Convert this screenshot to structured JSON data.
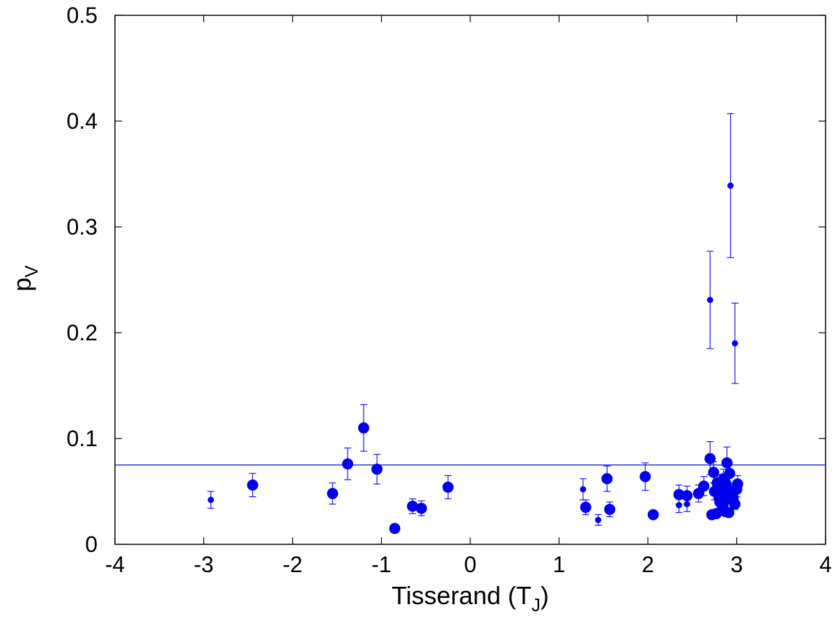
{
  "chart_data": {
    "type": "scatter",
    "title": "",
    "xlabel": "Tisserand (T",
    "xlabel_sub": "J",
    "xlabel_suffix": ")",
    "ylabel": "p",
    "ylabel_sub": "V",
    "xlim": [
      -4,
      4
    ],
    "ylim": [
      0,
      0.5
    ],
    "xticks": [
      -4,
      -3,
      -2,
      -1,
      0,
      1,
      2,
      3,
      4
    ],
    "yticks": [
      0,
      0.1,
      0.2,
      0.3,
      0.4,
      0.5
    ],
    "xtick_labels": [
      "-4",
      "-3",
      "-2",
      "-1",
      "0",
      "1",
      "2",
      "3",
      "4"
    ],
    "ytick_labels": [
      "0",
      "0.1",
      "0.2",
      "0.3",
      "0.4",
      "0.5"
    ],
    "grid": false,
    "color": "#0000ee",
    "reference_line": {
      "y": 0.075
    },
    "points": [
      {
        "x": -2.92,
        "y": 0.042,
        "lo": 0.034,
        "hi": 0.05,
        "size": "small"
      },
      {
        "x": -2.45,
        "y": 0.056,
        "lo": 0.045,
        "hi": 0.067,
        "size": "large"
      },
      {
        "x": -1.55,
        "y": 0.048,
        "lo": 0.038,
        "hi": 0.058,
        "size": "large"
      },
      {
        "x": -1.38,
        "y": 0.076,
        "lo": 0.061,
        "hi": 0.091,
        "size": "large"
      },
      {
        "x": -1.2,
        "y": 0.11,
        "lo": 0.088,
        "hi": 0.132,
        "size": "large"
      },
      {
        "x": -1.05,
        "y": 0.071,
        "lo": 0.057,
        "hi": 0.085,
        "size": "large"
      },
      {
        "x": -0.85,
        "y": 0.015,
        "lo": 0.013,
        "hi": 0.017,
        "size": "large"
      },
      {
        "x": -0.65,
        "y": 0.036,
        "lo": 0.029,
        "hi": 0.043,
        "size": "large"
      },
      {
        "x": -0.55,
        "y": 0.034,
        "lo": 0.027,
        "hi": 0.041,
        "size": "large"
      },
      {
        "x": -0.25,
        "y": 0.054,
        "lo": 0.043,
        "hi": 0.065,
        "size": "large"
      },
      {
        "x": 1.27,
        "y": 0.052,
        "lo": 0.042,
        "hi": 0.062,
        "size": "small"
      },
      {
        "x": 1.3,
        "y": 0.035,
        "lo": 0.028,
        "hi": 0.042,
        "size": "large"
      },
      {
        "x": 1.44,
        "y": 0.023,
        "lo": 0.018,
        "hi": 0.028,
        "size": "small"
      },
      {
        "x": 1.54,
        "y": 0.062,
        "lo": 0.05,
        "hi": 0.074,
        "size": "large"
      },
      {
        "x": 1.57,
        "y": 0.033,
        "lo": 0.026,
        "hi": 0.04,
        "size": "large"
      },
      {
        "x": 1.97,
        "y": 0.064,
        "lo": 0.051,
        "hi": 0.077,
        "size": "large"
      },
      {
        "x": 2.06,
        "y": 0.028,
        "lo": 0.025,
        "hi": 0.031,
        "size": "large"
      },
      {
        "x": 2.35,
        "y": 0.047,
        "lo": 0.038,
        "hi": 0.056,
        "size": "large"
      },
      {
        "x": 2.35,
        "y": 0.037,
        "lo": 0.03,
        "hi": 0.044,
        "size": "small"
      },
      {
        "x": 2.44,
        "y": 0.046,
        "lo": 0.037,
        "hi": 0.055,
        "size": "large"
      },
      {
        "x": 2.44,
        "y": 0.038,
        "lo": 0.031,
        "hi": 0.045,
        "size": "small"
      },
      {
        "x": 2.57,
        "y": 0.048,
        "lo": 0.04,
        "hi": 0.056,
        "size": "large"
      },
      {
        "x": 2.63,
        "y": 0.055,
        "lo": 0.046,
        "hi": 0.064,
        "size": "large"
      },
      {
        "x": 2.7,
        "y": 0.081,
        "lo": 0.066,
        "hi": 0.097,
        "size": "large"
      },
      {
        "x": 2.7,
        "y": 0.231,
        "lo": 0.185,
        "hi": 0.277,
        "size": "small"
      },
      {
        "x": 2.72,
        "y": 0.028,
        "lo": 0.025,
        "hi": 0.031,
        "size": "large"
      },
      {
        "x": 2.74,
        "y": 0.068,
        "lo": 0.058,
        "hi": 0.078,
        "size": "large"
      },
      {
        "x": 2.75,
        "y": 0.05,
        "lo": 0.042,
        "hi": 0.058,
        "size": "large"
      },
      {
        "x": 2.77,
        "y": 0.029,
        "lo": 0.026,
        "hi": 0.032,
        "size": "large"
      },
      {
        "x": 2.78,
        "y": 0.058,
        "lo": 0.05,
        "hi": 0.066,
        "size": "large"
      },
      {
        "x": 2.8,
        "y": 0.044,
        "lo": 0.037,
        "hi": 0.051,
        "size": "large"
      },
      {
        "x": 2.81,
        "y": 0.04,
        "lo": 0.034,
        "hi": 0.046,
        "size": "large"
      },
      {
        "x": 2.83,
        "y": 0.053,
        "lo": 0.045,
        "hi": 0.061,
        "size": "large"
      },
      {
        "x": 2.84,
        "y": 0.036,
        "lo": 0.031,
        "hi": 0.041,
        "size": "large"
      },
      {
        "x": 2.85,
        "y": 0.062,
        "lo": 0.053,
        "hi": 0.071,
        "size": "large"
      },
      {
        "x": 2.86,
        "y": 0.048,
        "lo": 0.041,
        "hi": 0.055,
        "size": "large"
      },
      {
        "x": 2.87,
        "y": 0.031,
        "lo": 0.027,
        "hi": 0.035,
        "size": "large"
      },
      {
        "x": 2.88,
        "y": 0.057,
        "lo": 0.049,
        "hi": 0.065,
        "size": "large"
      },
      {
        "x": 2.89,
        "y": 0.077,
        "lo": 0.062,
        "hi": 0.092,
        "size": "large"
      },
      {
        "x": 2.9,
        "y": 0.043,
        "lo": 0.037,
        "hi": 0.049,
        "size": "large"
      },
      {
        "x": 2.91,
        "y": 0.03,
        "lo": 0.026,
        "hi": 0.034,
        "size": "large"
      },
      {
        "x": 2.92,
        "y": 0.067,
        "lo": 0.057,
        "hi": 0.077,
        "size": "large"
      },
      {
        "x": 2.93,
        "y": 0.339,
        "lo": 0.271,
        "hi": 0.407,
        "size": "small"
      },
      {
        "x": 2.94,
        "y": 0.05,
        "lo": 0.043,
        "hi": 0.057,
        "size": "large"
      },
      {
        "x": 2.96,
        "y": 0.044,
        "lo": 0.038,
        "hi": 0.05,
        "size": "large"
      },
      {
        "x": 2.98,
        "y": 0.038,
        "lo": 0.033,
        "hi": 0.043,
        "size": "large"
      },
      {
        "x": 2.98,
        "y": 0.19,
        "lo": 0.152,
        "hi": 0.228,
        "size": "small"
      },
      {
        "x": 3.0,
        "y": 0.052,
        "lo": 0.045,
        "hi": 0.059,
        "size": "large"
      },
      {
        "x": 3.01,
        "y": 0.057,
        "lo": 0.049,
        "hi": 0.065,
        "size": "large"
      }
    ]
  }
}
